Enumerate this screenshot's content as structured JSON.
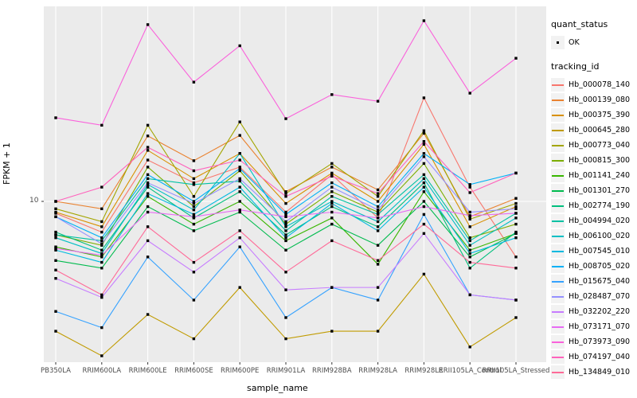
{
  "panel": {
    "bg": "#ebebeb",
    "grid": "#ffffff",
    "tick_color": "#333333",
    "point_color": "#000000"
  },
  "y_axis": {
    "title": "FPKM + 1",
    "tick_label": "10"
  },
  "x_axis": {
    "title": "sample_name"
  },
  "legend": {
    "quant_status": {
      "title": "quant_status",
      "items": [
        {
          "label": "OK"
        }
      ]
    },
    "tracking_id": {
      "title": "tracking_id",
      "items": [
        {
          "label": "Hb_000078_140",
          "color": "#F8766D"
        },
        {
          "label": "Hb_000139_080",
          "color": "#EA8331"
        },
        {
          "label": "Hb_000375_390",
          "color": "#D89000"
        },
        {
          "label": "Hb_000645_280",
          "color": "#C09B00"
        },
        {
          "label": "Hb_000773_040",
          "color": "#A3A500"
        },
        {
          "label": "Hb_000815_300",
          "color": "#7CAE00"
        },
        {
          "label": "Hb_001141_240",
          "color": "#39B600"
        },
        {
          "label": "Hb_001301_270",
          "color": "#00BB4E"
        },
        {
          "label": "Hb_002774_190",
          "color": "#00BF7D"
        },
        {
          "label": "Hb_004994_020",
          "color": "#00C1A3"
        },
        {
          "label": "Hb_006100_020",
          "color": "#00BFC4"
        },
        {
          "label": "Hb_007545_010",
          "color": "#00BAE0"
        },
        {
          "label": "Hb_008705_020",
          "color": "#00B0F6"
        },
        {
          "label": "Hb_015675_040",
          "color": "#35A2FF"
        },
        {
          "label": "Hb_028487_070",
          "color": "#9590FF"
        },
        {
          "label": "Hb_032202_220",
          "color": "#C77CFF"
        },
        {
          "label": "Hb_073171_070",
          "color": "#E76BF3"
        },
        {
          "label": "Hb_073973_090",
          "color": "#FA62DB"
        },
        {
          "label": "Hb_074197_040",
          "color": "#FF62BC"
        },
        {
          "label": "Hb_134849_010",
          "color": "#FF6A98"
        }
      ]
    }
  },
  "chart_data": {
    "type": "line",
    "title": "",
    "xlabel": "sample_name",
    "ylabel": "FPKM + 1",
    "y_scale": "log10",
    "ylim": [
      1.6,
      68
    ],
    "y_breaks": [
      10
    ],
    "grid": "major-only",
    "point_shape": "filled-square",
    "point_legend_label": "OK",
    "legend_position": "right",
    "categories": [
      "PB350LA",
      "RRIM600LA",
      "RRIM600LE",
      "RRIM600SE",
      "RRIM600PE",
      "RRIM901LA",
      "RRIM928BA",
      "RRIM928LA",
      "RRIM928LE",
      "RRII105LA_Control",
      "RRII105LA_Stressed"
    ],
    "series": [
      {
        "name": "Hb_000078_140",
        "color": "#F8766D",
        "values": [
          8.9,
          7.4,
          15.0,
          12.0,
          14.0,
          9.0,
          13.0,
          8.5,
          27.6,
          11.5,
          5.8
        ]
      },
      {
        "name": "Hb_000139_080",
        "color": "#EA8331",
        "values": [
          10.0,
          9.3,
          19.0,
          14.9,
          19.1,
          11.0,
          14.0,
          11.2,
          19.5,
          8.6,
          10.3
        ]
      },
      {
        "name": "Hb_000375_390",
        "color": "#D89000",
        "values": [
          9.0,
          7.8,
          16.5,
          12.5,
          16.0,
          9.8,
          13.2,
          10.0,
          17.5,
          7.8,
          9.5
        ]
      },
      {
        "name": "Hb_000645_280",
        "color": "#C09B00",
        "values": [
          2.8,
          2.2,
          3.3,
          2.6,
          4.3,
          2.6,
          2.8,
          2.8,
          4.9,
          2.4,
          3.2
        ]
      },
      {
        "name": "Hb_000773_040",
        "color": "#A3A500",
        "values": [
          9.3,
          8.2,
          21.1,
          10.5,
          21.8,
          10.8,
          14.5,
          10.5,
          20.0,
          8.4,
          9.8
        ]
      },
      {
        "name": "Hb_000815_300",
        "color": "#7CAE00",
        "values": [
          7.2,
          6.5,
          14.0,
          9.5,
          13.5,
          8.0,
          11.0,
          9.0,
          14.5,
          7.0,
          8.0
        ]
      },
      {
        "name": "Hb_001141_240",
        "color": "#39B600",
        "values": [
          6.4,
          5.8,
          10.5,
          8.0,
          10.0,
          6.8,
          8.5,
          5.4,
          11.0,
          6.2,
          7.3
        ]
      },
      {
        "name": "Hb_001301_270",
        "color": "#00BB4E",
        "values": [
          5.6,
          5.2,
          9.5,
          7.5,
          9.0,
          6.2,
          8.0,
          6.5,
          10.0,
          5.8,
          7.3
        ]
      },
      {
        "name": "Hb_002774_190",
        "color": "#00BF7D",
        "values": [
          7.4,
          6.2,
          11.5,
          8.5,
          11.0,
          7.2,
          9.5,
          7.8,
          12.0,
          5.2,
          7.4
        ]
      },
      {
        "name": "Hb_004994_020",
        "color": "#00C1A3",
        "values": [
          7.2,
          6.8,
          12.5,
          11.8,
          12.2,
          7.5,
          10.5,
          8.8,
          13.0,
          6.8,
          8.9
        ]
      },
      {
        "name": "Hb_006100_020",
        "color": "#00BFC4",
        "values": [
          7.0,
          6.0,
          11.8,
          9.2,
          16.0,
          7.8,
          10.0,
          8.2,
          12.5,
          6.5,
          8.5
        ]
      },
      {
        "name": "Hb_007545_010",
        "color": "#00BAE0",
        "values": [
          6.2,
          5.5,
          10.8,
          8.8,
          11.5,
          7.0,
          9.8,
          7.5,
          11.5,
          6.0,
          7.0
        ]
      },
      {
        "name": "Hb_008705_020",
        "color": "#00B0F6",
        "values": [
          8.6,
          7.0,
          13.0,
          10.0,
          13.8,
          8.8,
          12.0,
          9.5,
          16.0,
          11.8,
          13.2
        ]
      },
      {
        "name": "Hb_015675_040",
        "color": "#35A2FF",
        "values": [
          3.4,
          2.9,
          5.8,
          3.8,
          6.4,
          3.2,
          4.3,
          3.8,
          8.8,
          4.0,
          3.8
        ]
      },
      {
        "name": "Hb_028487_070",
        "color": "#9590FF",
        "values": [
          8.6,
          6.6,
          12.0,
          9.8,
          12.5,
          8.2,
          11.5,
          9.2,
          15.5,
          9.0,
          9.3
        ]
      },
      {
        "name": "Hb_032202_220",
        "color": "#C77CFF",
        "values": [
          4.7,
          3.9,
          6.8,
          5.0,
          7.0,
          4.2,
          4.3,
          4.3,
          7.3,
          4.0,
          3.8
        ]
      },
      {
        "name": "Hb_073171_070",
        "color": "#E76BF3",
        "values": [
          6.3,
          5.9,
          9.0,
          8.6,
          9.2,
          8.6,
          9.0,
          8.5,
          9.5,
          8.7,
          8.9
        ]
      },
      {
        "name": "Hb_073973_090",
        "color": "#FA62DB",
        "values": [
          22.7,
          21.1,
          56.6,
          32.2,
          46.0,
          22.5,
          28.5,
          26.7,
          58.8,
          28.9,
          40.7
        ]
      },
      {
        "name": "Hb_074197_040",
        "color": "#FF62BC",
        "values": [
          10.0,
          11.5,
          17.0,
          13.5,
          15.0,
          10.5,
          12.8,
          10.8,
          18.0,
          10.9,
          13.2
        ]
      },
      {
        "name": "Hb_134849_010",
        "color": "#FF6A98",
        "values": [
          5.1,
          4.0,
          7.8,
          5.5,
          7.5,
          5.0,
          6.8,
          5.6,
          8.0,
          5.5,
          5.2
        ]
      }
    ]
  }
}
